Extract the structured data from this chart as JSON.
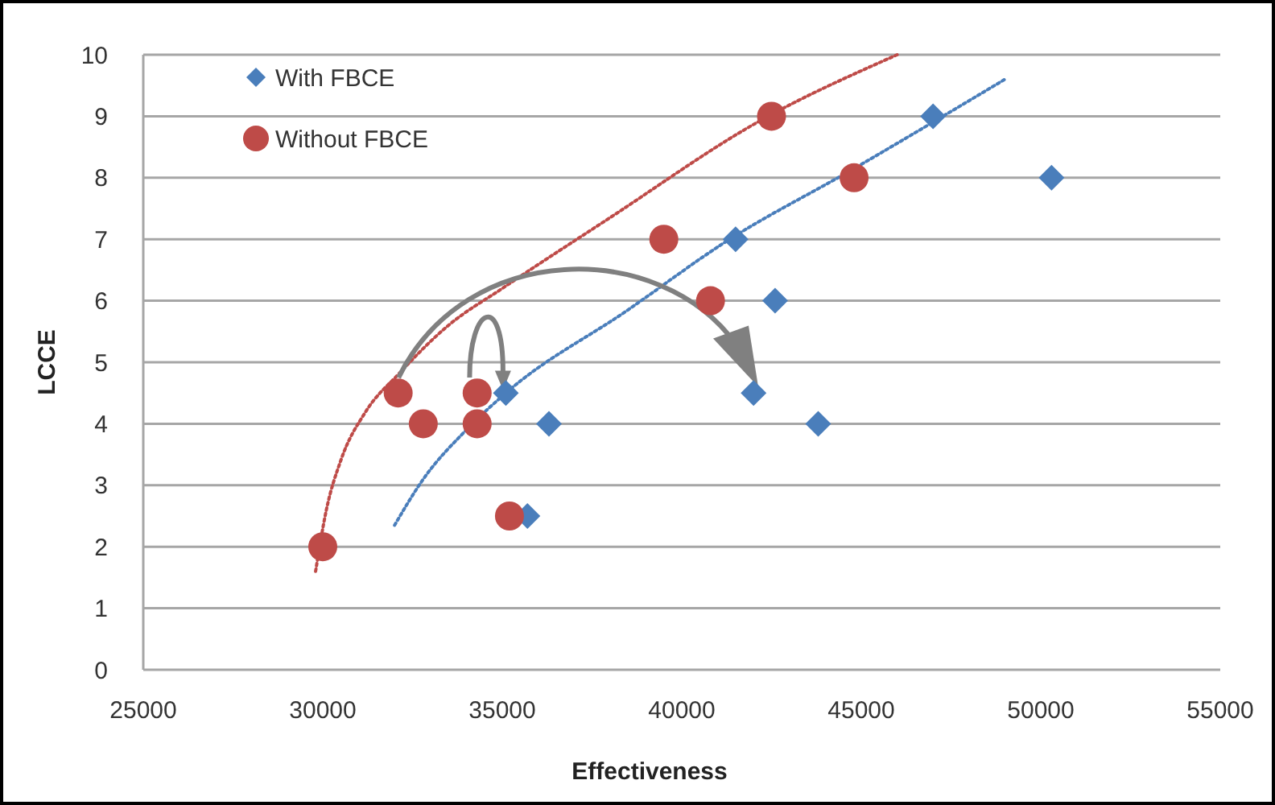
{
  "chart_data": {
    "type": "scatter",
    "xlabel": "Effectiveness",
    "ylabel": "LCCE",
    "xlim": [
      25000,
      55000
    ],
    "xticks": [
      25000,
      30000,
      35000,
      40000,
      45000,
      50000,
      55000
    ],
    "ylim": [
      0,
      10
    ],
    "yticks": [
      0,
      1,
      2,
      3,
      4,
      5,
      6,
      7,
      8,
      9,
      10
    ],
    "grid": "y",
    "legend": "top left",
    "series": [
      {
        "name": "With FBCE",
        "color": "#4a7ebb",
        "marker": "diamond",
        "x": [
          35100,
          36300,
          35700,
          41500,
          42600,
          42000,
          43800,
          47000,
          50300
        ],
        "values": [
          4.5,
          4,
          2.5,
          7,
          6,
          4.5,
          4,
          9,
          8
        ]
      },
      {
        "name": "Without FBCE",
        "color": "#be4b48",
        "marker": "circle",
        "x": [
          30000,
          32100,
          32800,
          34300,
          34300,
          35200,
          39500,
          40800,
          42500,
          44800
        ],
        "values": [
          2,
          4.5,
          4,
          4.5,
          4,
          2.5,
          7,
          6,
          9,
          8
        ]
      },
      {
        "type": "line",
        "color": "#be4b48",
        "line_style": "dotted",
        "marker": "none",
        "x": [
          29800,
          30100,
          30500,
          31200,
          32100,
          33500,
          35000,
          38000,
          42100,
          46000
        ],
        "values": [
          1.6,
          2.6,
          3.4,
          4.2,
          4.8,
          5.6,
          6.2,
          7.35,
          8.9,
          10
        ]
      },
      {
        "type": "line",
        "color": "#4a7ebb",
        "line_style": "dotted",
        "marker": "none",
        "x": [
          32000,
          32800,
          34000,
          35100,
          38500,
          41200,
          44800,
          49000
        ],
        "values": [
          2.35,
          3.1,
          3.9,
          4.5,
          5.85,
          6.95,
          8.15,
          9.6
        ]
      }
    ]
  }
}
